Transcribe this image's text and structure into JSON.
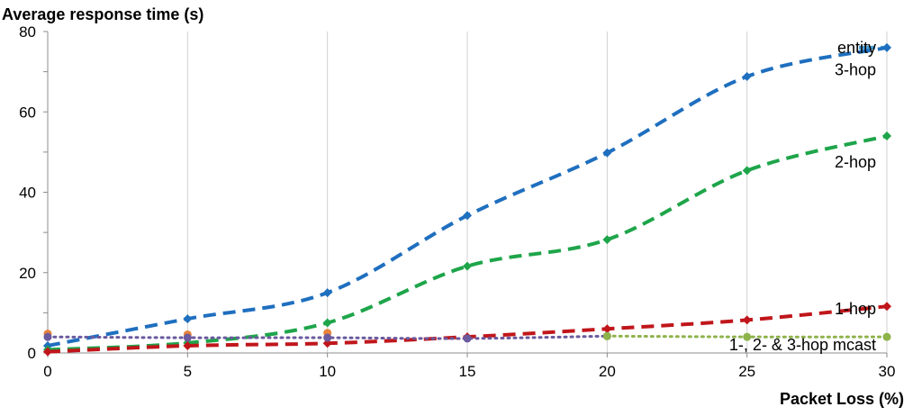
{
  "chart_data": {
    "type": "line",
    "ylabel": "Average response time (s)",
    "xlabel": "Packet Loss (%)",
    "xlim": [
      0,
      30
    ],
    "ylim": [
      0,
      80
    ],
    "xticks": [
      0,
      5,
      10,
      15,
      20,
      25,
      30
    ],
    "yticks": [
      0,
      20,
      40,
      60,
      80
    ],
    "grid": "vertical",
    "series": [
      {
        "name": "entity",
        "color": "#4aa0d8",
        "dash": "long-dash",
        "marker": "none",
        "x": [
          29,
          30
        ],
        "y": [
          76,
          76
        ]
      },
      {
        "name": "3-hop",
        "color": "#1f6fbf",
        "dash": "dash",
        "marker": "diamond",
        "x": [
          0,
          5,
          10,
          15,
          20,
          25,
          30
        ],
        "y": [
          1.8,
          8.5,
          15.0,
          34.2,
          49.8,
          68.8,
          76.0
        ]
      },
      {
        "name": "2-hop",
        "color": "#1ea54a",
        "dash": "dash",
        "marker": "diamond",
        "x": [
          0,
          5,
          10,
          15,
          20,
          25,
          30
        ],
        "y": [
          0.8,
          2.5,
          7.5,
          21.6,
          28.2,
          45.4,
          54.0
        ]
      },
      {
        "name": "1-hop",
        "color": "#c0161b",
        "dash": "dash",
        "marker": "diamond",
        "x": [
          0,
          5,
          10,
          15,
          20,
          25,
          30
        ],
        "y": [
          0.3,
          1.8,
          2.4,
          4.0,
          6.0,
          8.2,
          11.6
        ]
      },
      {
        "name": "",
        "color": "#e8833a",
        "dash": "none",
        "marker": "circle",
        "x": [
          0,
          5,
          10
        ],
        "y": [
          4.8,
          4.6,
          5.0
        ]
      },
      {
        "name": "",
        "color": "#6a5a9e",
        "dash": "dot",
        "marker": "circle",
        "x": [
          0,
          5,
          10,
          15,
          20
        ],
        "y": [
          4.0,
          3.8,
          3.8,
          3.6,
          4.2
        ]
      },
      {
        "name": "1-, 2- & 3-hop mcast",
        "color": "#8db34a",
        "dash": "dot",
        "marker": "circle",
        "x": [
          20,
          25,
          30
        ],
        "y": [
          4.2,
          4.0,
          4.0
        ]
      }
    ],
    "series_labels": [
      {
        "text": "entity",
        "x": 30,
        "y": 76
      },
      {
        "text": "3-hop",
        "x": 30,
        "y": 70.5
      },
      {
        "text": "2-hop",
        "x": 30,
        "y": 47.5
      },
      {
        "text": "1-hop",
        "x": 30,
        "y": 11
      },
      {
        "text": "1-, 2- & 3-hop mcast",
        "x": 30,
        "y": 2
      }
    ]
  }
}
